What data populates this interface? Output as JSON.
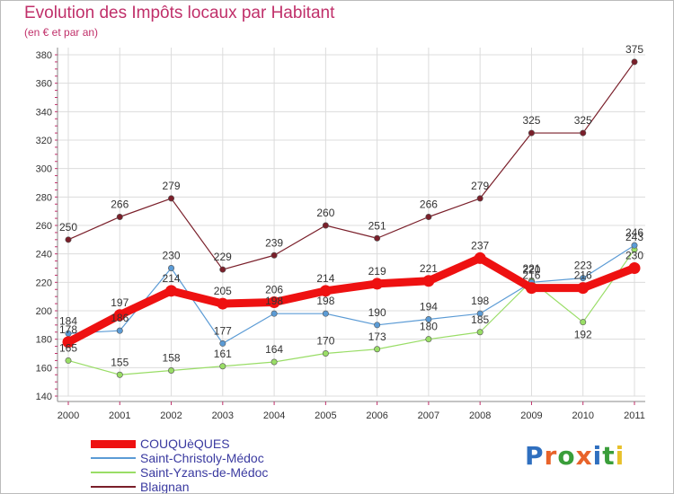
{
  "header": {
    "title": "Evolution des Impôts locaux par Habitant",
    "subtitle": "(en € et par an)"
  },
  "logo": {
    "text": "Proxiti",
    "colors": [
      "#2f6fbf",
      "#e8632a",
      "#3a9e3a",
      "#e8632a",
      "#2f6fbf",
      "#3a9e3a",
      "#e8c02a"
    ]
  },
  "chart_data": {
    "type": "line",
    "title": "Evolution des Impôts locaux par Habitant",
    "subtitle": "(en € et par an)",
    "x": [
      "2000",
      "2001",
      "2002",
      "2003",
      "2004",
      "2005",
      "2006",
      "2007",
      "2008",
      "2009",
      "2010",
      "2011"
    ],
    "ylim": [
      140,
      380
    ],
    "yticks": [
      140,
      160,
      180,
      200,
      220,
      240,
      260,
      280,
      300,
      320,
      340,
      360,
      380
    ],
    "grid": true,
    "legend_position": "bottom-left",
    "series": [
      {
        "name": "Blaignan",
        "color": "#7a1f2a",
        "values": [
          250,
          266,
          279,
          229,
          239,
          260,
          251,
          266,
          279,
          325,
          325,
          375
        ],
        "labels": [
          "250",
          "266",
          "279",
          "229",
          "239",
          "260",
          "251",
          "266",
          "279",
          "325",
          "325",
          "375"
        ]
      },
      {
        "name": "Saint-Yzans-de-Médoc",
        "color": "#99dd66",
        "values": [
          165,
          155,
          158,
          161,
          164,
          170,
          173,
          180,
          185,
          221,
          192,
          243
        ],
        "labels": [
          "165",
          "155",
          "158",
          "161",
          "164",
          "170",
          "173",
          "180",
          "185",
          "221",
          "192",
          "243"
        ]
      },
      {
        "name": "Saint-Christoly-Médoc",
        "color": "#5b9bd5",
        "values": [
          184,
          186,
          230,
          177,
          198,
          198,
          190,
          194,
          198,
          220,
          223,
          246
        ],
        "labels": [
          "184",
          "186",
          "230",
          "177",
          "198",
          "198",
          "190",
          "194",
          "198",
          "220",
          "223",
          "246"
        ]
      },
      {
        "name": "COUQUèQUES",
        "color": "#ee1111",
        "values": [
          178,
          197,
          214,
          205,
          206,
          214,
          219,
          221,
          237,
          216,
          216,
          230
        ],
        "labels": [
          "178",
          "197",
          "214",
          "205",
          "206",
          "214",
          "219",
          "221",
          "237",
          "216",
          "216",
          "230"
        ]
      }
    ],
    "legend": [
      {
        "name": "COUQUèQUES",
        "color": "#ee1111",
        "width": 9
      },
      {
        "name": "Saint-Christoly-Médoc",
        "color": "#5b9bd5",
        "width": 2
      },
      {
        "name": "Saint-Yzans-de-Médoc",
        "color": "#99dd66",
        "width": 2
      },
      {
        "name": "Blaignan",
        "color": "#7a1f2a",
        "width": 2
      }
    ]
  }
}
